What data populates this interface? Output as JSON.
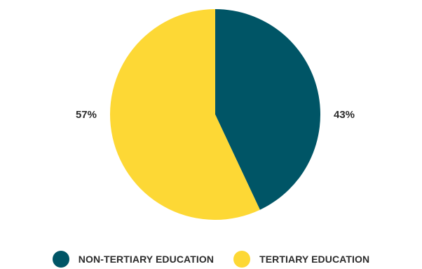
{
  "chart_data": {
    "type": "pie",
    "title": "",
    "slices": [
      {
        "label": "NON-TERTIARY EDUCATION",
        "value": 43,
        "value_label": "43%",
        "color": "#005566"
      },
      {
        "label": "TERTIARY EDUCATION",
        "value": 57,
        "value_label": "57%",
        "color": "#fdd835"
      }
    ],
    "start_angle": "12 o'clock",
    "direction": "clockwise",
    "legend_position": "bottom"
  }
}
